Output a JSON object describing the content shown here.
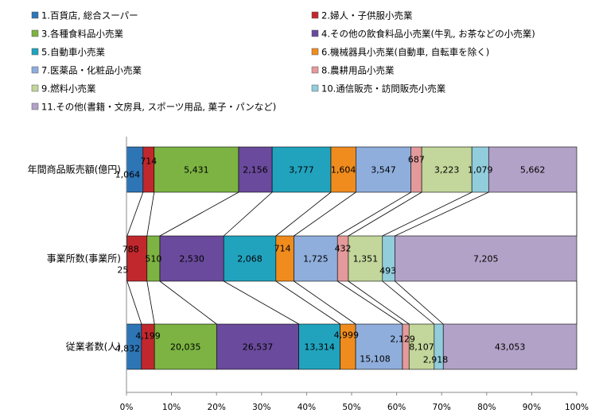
{
  "chart_data": {
    "type": "bar",
    "orientation": "horizontal",
    "stacked": "percent",
    "categories": [
      "年間商品販売額(億円)",
      "事業所数(事業所)",
      "従業者数(人)"
    ],
    "series": [
      {
        "name": "1.百貨店, 総合スーパー",
        "color": "#2E75B6",
        "values": [
          1064,
          25,
          4832
        ]
      },
      {
        "name": "2.婦人・子供服小売業",
        "color": "#C0282D",
        "values": [
          714,
          788,
          4199
        ]
      },
      {
        "name": "3.各種食料品小売業",
        "color": "#7CB342",
        "values": [
          5431,
          510,
          20035
        ]
      },
      {
        "name": "4.その他の飲食料品小売業(牛乳, お茶などの小売業)",
        "color": "#6A4A9C",
        "values": [
          2156,
          2530,
          26537
        ]
      },
      {
        "name": "5.自動車小売業",
        "color": "#21A3BE",
        "values": [
          3777,
          2068,
          13314
        ]
      },
      {
        "name": "6.機械器具小売業(自動車, 自転車を除く)",
        "color": "#F08C1E",
        "values": [
          1604,
          714,
          4999
        ]
      },
      {
        "name": "7.医薬品・化粧品小売業",
        "color": "#8FAEDC",
        "values": [
          3547,
          1725,
          15108
        ]
      },
      {
        "name": "8.農耕用品小売業",
        "color": "#E49A9B",
        "values": [
          687,
          432,
          2129
        ]
      },
      {
        "name": "9.燃料小売業",
        "color": "#C3D69B",
        "values": [
          3223,
          1351,
          8107
        ]
      },
      {
        "name": "10.通信販売・訪問販売小売業",
        "color": "#92CDDC",
        "values": [
          1079,
          493,
          2918
        ]
      },
      {
        "name": "11.その他(書籍・文房具, スポーツ用品, 菓子・パンなど)",
        "color": "#B3A2C7",
        "values": [
          5662,
          7205,
          43053
        ]
      }
    ],
    "x_ticks": [
      "0%",
      "10%",
      "20%",
      "30%",
      "40%",
      "50%",
      "60%",
      "70%",
      "80%",
      "90%",
      "100%"
    ],
    "xlim": [
      0,
      100
    ],
    "connector_lines": true,
    "legend_placement": "top"
  }
}
